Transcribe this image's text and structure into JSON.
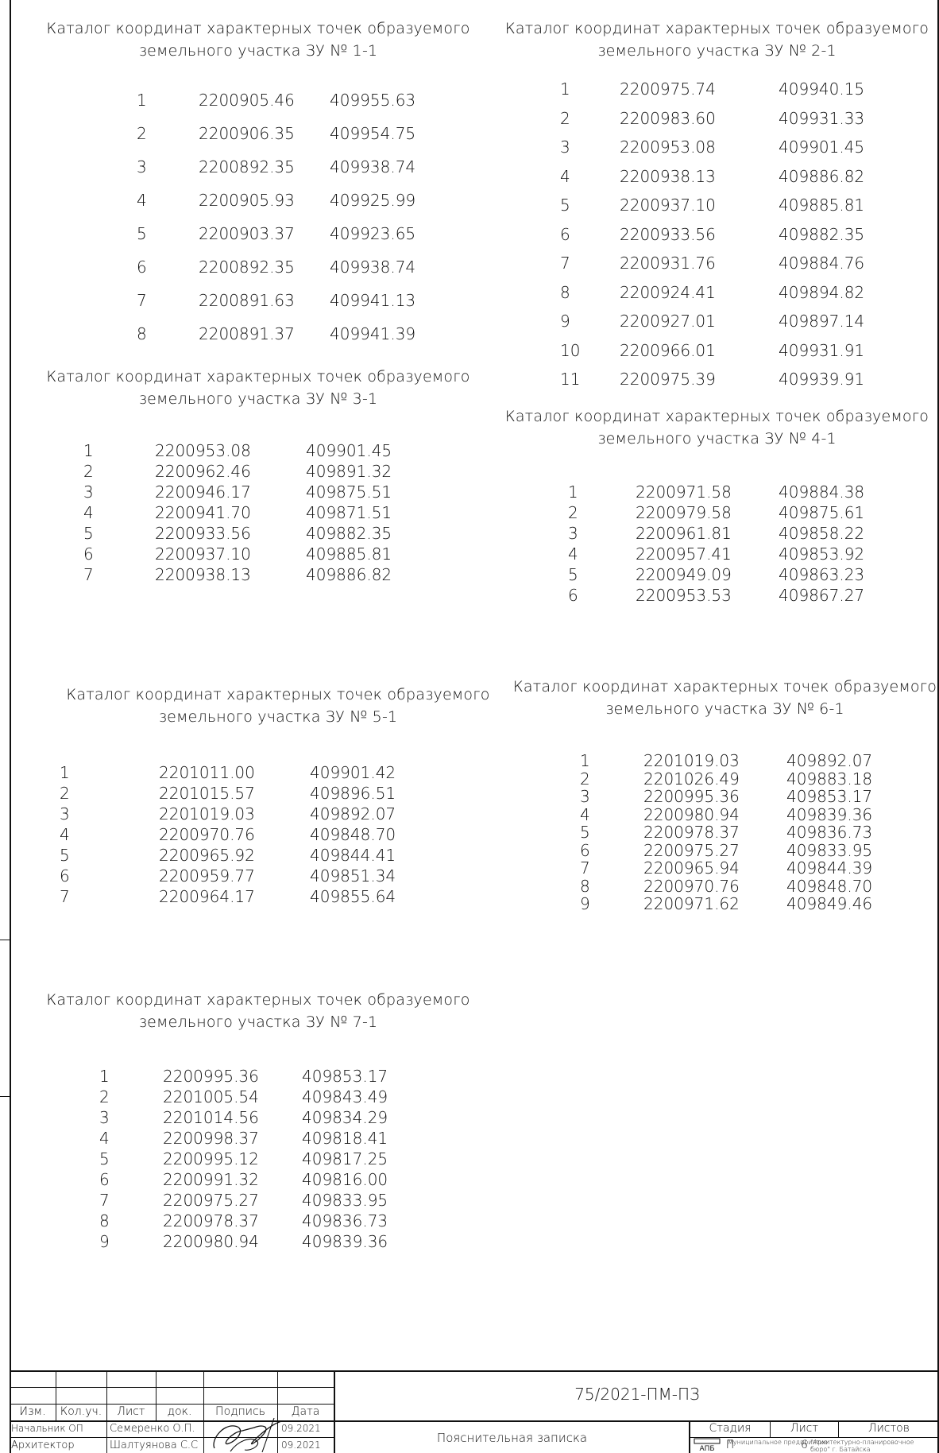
{
  "catalogs": [
    {
      "id": "zu1",
      "title_line1": "Каталог координат характерных точек образуемого",
      "title_line2": "земельного участка ЗУ № 1-1",
      "points": [
        {
          "n": "1",
          "x": "2200905.46",
          "y": "409955.63"
        },
        {
          "n": "2",
          "x": "2200906.35",
          "y": "409954.75"
        },
        {
          "n": "3",
          "x": "2200892.35",
          "y": "409938.74"
        },
        {
          "n": "4",
          "x": "2200905.93",
          "y": "409925.99"
        },
        {
          "n": "5",
          "x": "2200903.37",
          "y": "409923.65"
        },
        {
          "n": "6",
          "x": "2200892.35",
          "y": "409938.74"
        },
        {
          "n": "7",
          "x": "2200891.63",
          "y": "409941.13"
        },
        {
          "n": "8",
          "x": "2200891.37",
          "y": "409941.39"
        }
      ]
    },
    {
      "id": "zu2",
      "title_line1": "Каталог координат характерных точек образуемого",
      "title_line2": "земельного участка ЗУ № 2-1",
      "points": [
        {
          "n": "1",
          "x": "2200975.74",
          "y": "409940.15"
        },
        {
          "n": "2",
          "x": "2200983.60",
          "y": "409931.33"
        },
        {
          "n": "3",
          "x": "2200953.08",
          "y": "409901.45"
        },
        {
          "n": "4",
          "x": "2200938.13",
          "y": "409886.82"
        },
        {
          "n": "5",
          "x": "2200937.10",
          "y": "409885.81"
        },
        {
          "n": "6",
          "x": "2200933.56",
          "y": "409882.35"
        },
        {
          "n": "7",
          "x": "2200931.76",
          "y": "409884.76"
        },
        {
          "n": "8",
          "x": "2200924.41",
          "y": "409894.82"
        },
        {
          "n": "9",
          "x": "2200927.01",
          "y": "409897.14"
        },
        {
          "n": "10",
          "x": "2200966.01",
          "y": "409931.91"
        },
        {
          "n": "11",
          "x": "2200975.39",
          "y": "409939.91"
        }
      ]
    },
    {
      "id": "zu3",
      "title_line1": "Каталог координат характерных точек образуемого",
      "title_line2": "земельного участка ЗУ № 3-1",
      "points": [
        {
          "n": "1",
          "x": "2200953.08",
          "y": "409901.45"
        },
        {
          "n": "2",
          "x": "2200962.46",
          "y": "409891.32"
        },
        {
          "n": "3",
          "x": "2200946.17",
          "y": "409875.51"
        },
        {
          "n": "4",
          "x": "2200941.70",
          "y": "409871.51"
        },
        {
          "n": "5",
          "x": "2200933.56",
          "y": "409882.35"
        },
        {
          "n": "6",
          "x": "2200937.10",
          "y": "409885.81"
        },
        {
          "n": "7",
          "x": "2200938.13",
          "y": "409886.82"
        }
      ]
    },
    {
      "id": "zu4",
      "title_line1": "Каталог координат характерных точек образуемого",
      "title_line2": "земельного участка ЗУ № 4-1",
      "points": [
        {
          "n": "1",
          "x": "2200971.58",
          "y": "409884.38"
        },
        {
          "n": "2",
          "x": "2200979.58",
          "y": "409875.61"
        },
        {
          "n": "3",
          "x": "2200961.81",
          "y": "409858.22"
        },
        {
          "n": "4",
          "x": "2200957.41",
          "y": "409853.92"
        },
        {
          "n": "5",
          "x": "2200949.09",
          "y": "409863.23"
        },
        {
          "n": "6",
          "x": "2200953.53",
          "y": "409867.27"
        }
      ]
    },
    {
      "id": "zu5",
      "title_line1": "Каталог координат характерных точек образуемого",
      "title_line2": "земельного участка ЗУ № 5-1",
      "points": [
        {
          "n": "1",
          "x": "2201011.00",
          "y": "409901.42"
        },
        {
          "n": "2",
          "x": "2201015.57",
          "y": "409896.51"
        },
        {
          "n": "3",
          "x": "2201019.03",
          "y": "409892.07"
        },
        {
          "n": "4",
          "x": "2200970.76",
          "y": "409848.70"
        },
        {
          "n": "5",
          "x": "2200965.92",
          "y": "409844.41"
        },
        {
          "n": "6",
          "x": "2200959.77",
          "y": "409851.34"
        },
        {
          "n": "7",
          "x": "2200964.17",
          "y": "409855.64"
        }
      ]
    },
    {
      "id": "zu6",
      "title_line1": "Каталог координат характерных точек образуемого",
      "title_line2": "земельного участка ЗУ № 6-1",
      "points": [
        {
          "n": "1",
          "x": "2201019.03",
          "y": "409892.07"
        },
        {
          "n": "2",
          "x": "2201026.49",
          "y": "409883.18"
        },
        {
          "n": "3",
          "x": "2200995.36",
          "y": "409853.17"
        },
        {
          "n": "4",
          "x": "2200980.94",
          "y": "409839.36"
        },
        {
          "n": "5",
          "x": "2200978.37",
          "y": "409836.73"
        },
        {
          "n": "6",
          "x": "2200975.27",
          "y": "409833.95"
        },
        {
          "n": "7",
          "x": "2200965.94",
          "y": "409844.39"
        },
        {
          "n": "8",
          "x": "2200970.76",
          "y": "409848.70"
        },
        {
          "n": "9",
          "x": "2200971.62",
          "y": "409849.46"
        }
      ]
    },
    {
      "id": "zu7",
      "title_line1": "Каталог координат характерных точек образуемого",
      "title_line2": "земельного участка ЗУ № 7-1",
      "points": [
        {
          "n": "1",
          "x": "2200995.36",
          "y": "409853.17"
        },
        {
          "n": "2",
          "x": "2201005.54",
          "y": "409843.49"
        },
        {
          "n": "3",
          "x": "2201014.56",
          "y": "409834.29"
        },
        {
          "n": "4",
          "x": "2200998.37",
          "y": "409818.41"
        },
        {
          "n": "5",
          "x": "2200995.12",
          "y": "409817.25"
        },
        {
          "n": "6",
          "x": "2200991.32",
          "y": "409816.00"
        },
        {
          "n": "7",
          "x": "2200975.27",
          "y": "409833.95"
        },
        {
          "n": "8",
          "x": "2200978.37",
          "y": "409836.73"
        },
        {
          "n": "9",
          "x": "2200980.94",
          "y": "409839.36"
        }
      ]
    }
  ],
  "title_block": {
    "doc_code": "75/2021-ПМ-ПЗ",
    "headers": {
      "izm": "Изм.",
      "kol_uch": "Кол.уч.",
      "list": "Лист",
      "dok": "док.",
      "podpis": "Подпись",
      "data": "Дата"
    },
    "staff": [
      {
        "role": "Начальник ОП",
        "name": "Семеренко О.П.",
        "date": "09.2021"
      },
      {
        "role": "Архитектор",
        "name": "Шалтуянова С.С",
        "date": "09.2021"
      }
    ],
    "doc_title": "Пояснительная записка",
    "stage_header": "Стадия",
    "sheet_header": "Лист",
    "sheets_header": "Листов",
    "stage_value": "П",
    "sheet_value": "6",
    "sheets_value": "",
    "org_logo_text": "АПБ",
    "org_line1": "Муниципальное предприятие",
    "org_line2": "\"Архитектурно-планировочное",
    "org_line3": "бюро\" г. Батайска"
  }
}
